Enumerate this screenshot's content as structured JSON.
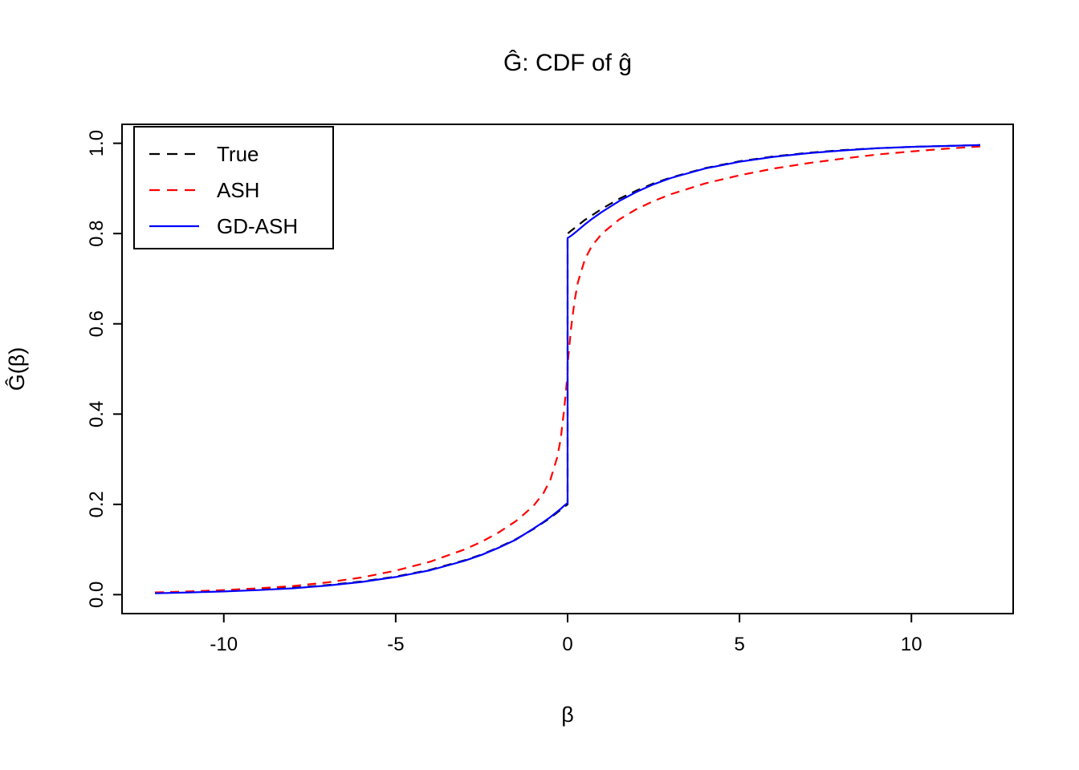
{
  "page": {
    "background": "#ffffff"
  },
  "chart_data": {
    "type": "line",
    "title": "Ĝ: CDF of ĝ",
    "xlabel": "β",
    "ylabel": "Ĝ(β)",
    "xlim": [
      -12.96,
      12.96
    ],
    "ylim": [
      -0.042,
      1.042
    ],
    "x_ticks": [
      -10,
      -5,
      0,
      5,
      10
    ],
    "x_tick_labels": [
      "-10",
      "-5",
      "0",
      "5",
      "10"
    ],
    "y_ticks": [
      0.0,
      0.2,
      0.4,
      0.6,
      0.8,
      1.0
    ],
    "y_tick_labels": [
      "0.0",
      "0.2",
      "0.4",
      "0.6",
      "0.8",
      "1.0"
    ],
    "grid": false,
    "legend_position": "top-left",
    "x": [
      -12,
      -11,
      -10,
      -9,
      -8,
      -7,
      -6,
      -5,
      -4,
      -3,
      -2.5,
      -2,
      -1.5,
      -1,
      -0.7,
      -0.5,
      -0.3,
      -0.2,
      -0.1,
      0,
      0,
      0.1,
      0.2,
      0.3,
      0.5,
      0.7,
      1,
      1.5,
      2,
      2.5,
      3,
      4,
      5,
      6,
      7,
      8,
      9,
      10,
      11,
      12
    ],
    "series": [
      {
        "name": "True",
        "color": "#000000",
        "dash": "dashed",
        "values": [
          0.004,
          0.006,
          0.008,
          0.011,
          0.015,
          0.021,
          0.029,
          0.04,
          0.055,
          0.076,
          0.089,
          0.105,
          0.123,
          0.145,
          0.16,
          0.17,
          0.182,
          0.188,
          0.194,
          0.2,
          0.8,
          0.806,
          0.812,
          0.818,
          0.83,
          0.84,
          0.855,
          0.877,
          0.895,
          0.911,
          0.924,
          0.945,
          0.96,
          0.971,
          0.979,
          0.985,
          0.989,
          0.992,
          0.994,
          0.996
        ]
      },
      {
        "name": "ASH",
        "color": "#FF0000",
        "dash": "dashed",
        "values": [
          0.005,
          0.007,
          0.01,
          0.014,
          0.019,
          0.027,
          0.038,
          0.053,
          0.073,
          0.1,
          0.117,
          0.138,
          0.163,
          0.196,
          0.225,
          0.255,
          0.305,
          0.345,
          0.41,
          0.49,
          0.51,
          0.59,
          0.65,
          0.692,
          0.742,
          0.772,
          0.8,
          0.831,
          0.854,
          0.872,
          0.887,
          0.911,
          0.929,
          0.944,
          0.956,
          0.966,
          0.975,
          0.982,
          0.988,
          0.993
        ]
      },
      {
        "name": "GD-ASH",
        "color": "#0000FF",
        "dash": "solid",
        "values": [
          0.003,
          0.005,
          0.007,
          0.01,
          0.014,
          0.02,
          0.028,
          0.039,
          0.054,
          0.075,
          0.088,
          0.104,
          0.122,
          0.146,
          0.161,
          0.172,
          0.184,
          0.19,
          0.197,
          0.203,
          0.79,
          0.795,
          0.801,
          0.807,
          0.82,
          0.832,
          0.848,
          0.872,
          0.892,
          0.909,
          0.923,
          0.944,
          0.959,
          0.97,
          0.978,
          0.984,
          0.989,
          0.992,
          0.994,
          0.996
        ]
      }
    ]
  }
}
